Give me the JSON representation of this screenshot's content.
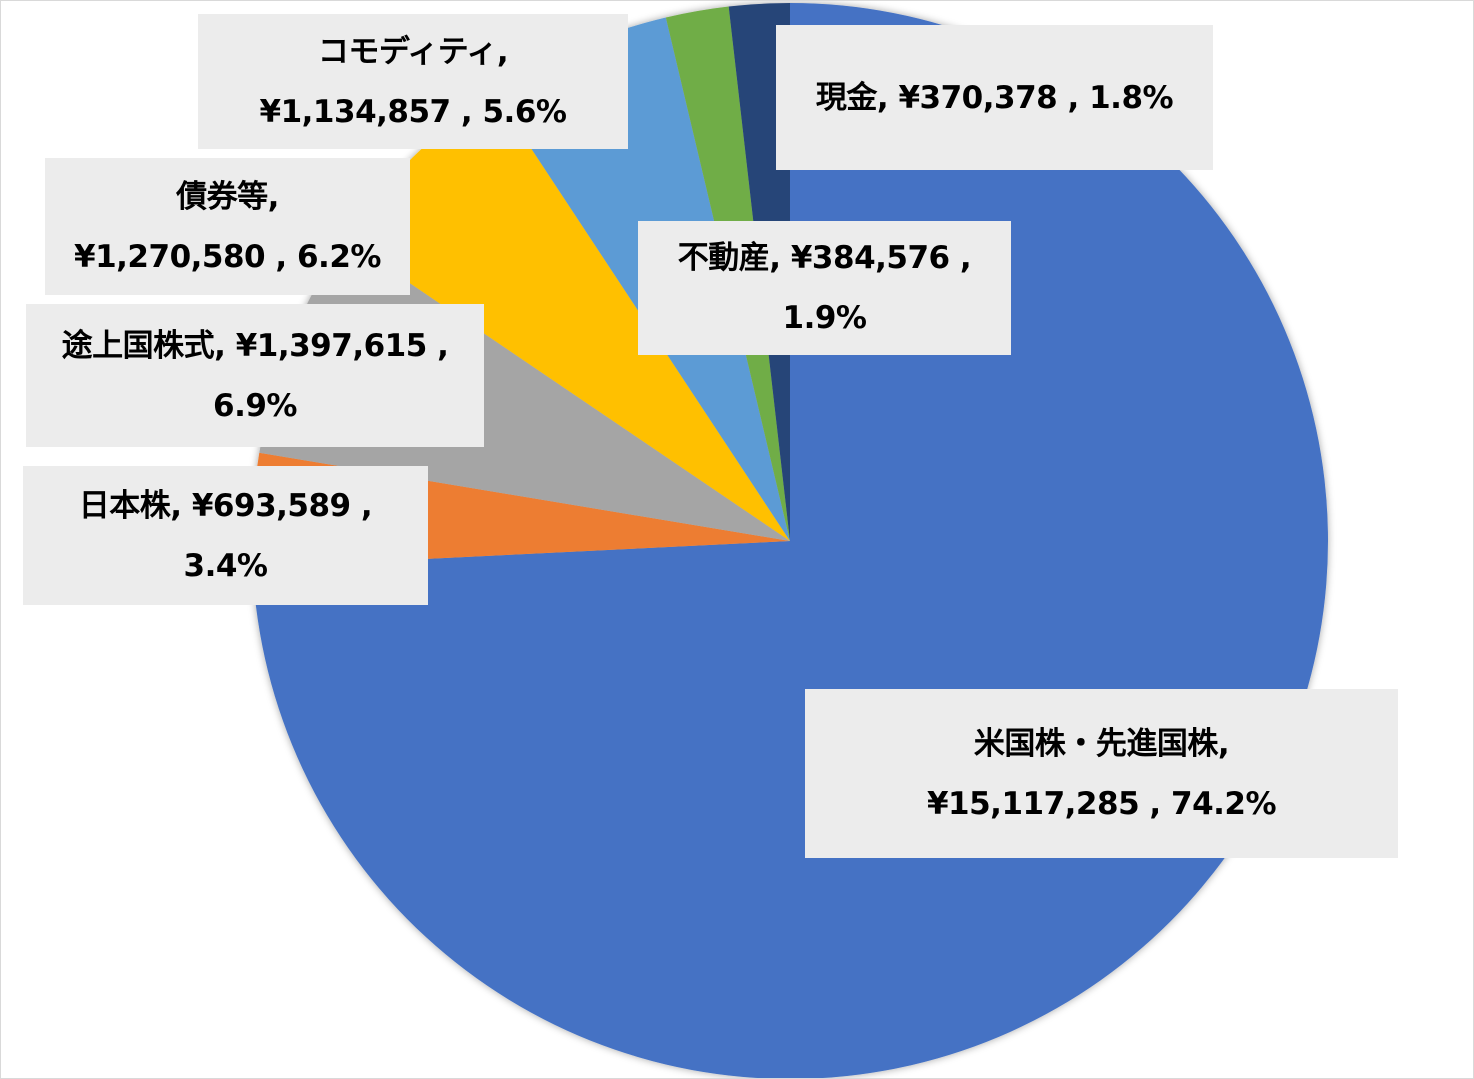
{
  "chart_data": {
    "type": "pie",
    "start_angle": "12 o'clock",
    "direction": "clockwise",
    "categories": [
      "米国株・先進国株",
      "日本株",
      "途上国株式",
      "債券等",
      "コモディティ",
      "不動産",
      "現金"
    ],
    "values": [
      15117285,
      693589,
      1397615,
      1270580,
      1134857,
      384576,
      370378
    ],
    "percents": [
      74.2,
      3.4,
      6.9,
      6.2,
      5.6,
      1.9,
      1.8
    ],
    "colors": [
      "#4472C4",
      "#ED7D31",
      "#A5A5A5",
      "#FFC000",
      "#5B9BD5",
      "#70AD47",
      "#264478"
    ],
    "data_labels": [
      [
        "米国株・先進国株,",
        "¥15,117,285 , 74.2%"
      ],
      [
        "日本株, ¥693,589 ,",
        "3.4%"
      ],
      [
        "途上国株式, ¥1,397,615 ,",
        "6.9%"
      ],
      [
        "債券等,",
        "¥1,270,580 , 6.2%"
      ],
      [
        "コモディティ,",
        "¥1,134,857 , 5.6%"
      ],
      [
        "不動産, ¥384,576 ,",
        "1.9%"
      ],
      [
        "現金, ¥370,378 , 1.8%"
      ]
    ],
    "legend": "none"
  }
}
